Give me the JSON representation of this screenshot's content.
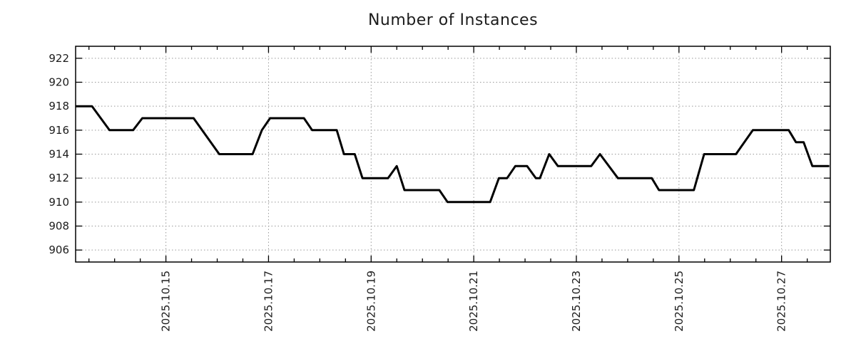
{
  "chart_data": {
    "type": "line",
    "title": "Number of Instances",
    "legend": "none",
    "grid": "dotted, at major ticks, both axes",
    "x_axis": {
      "unit": "date (fractional day of 2025.10)",
      "xlim": [
        13.24,
        27.95
      ],
      "tick_values": [
        15,
        17,
        19,
        21,
        23,
        25,
        27
      ],
      "tick_labels": [
        "2025.10.15",
        "2025.10.17",
        "2025.10.19",
        "2025.10.21",
        "2025.10.23",
        "2025.10.25",
        "2025.10.27"
      ],
      "tick_label_rotation_deg": -90,
      "minor_tick_step": 0.5
    },
    "y_axis": {
      "ylim": [
        905,
        923
      ],
      "tick_values": [
        906,
        908,
        910,
        912,
        914,
        916,
        918,
        920,
        922
      ]
    },
    "series": [
      {
        "name": "instances",
        "color": "#000000",
        "points": [
          [
            13.24,
            918
          ],
          [
            13.56,
            918
          ],
          [
            13.9,
            916
          ],
          [
            14.36,
            916
          ],
          [
            14.54,
            917
          ],
          [
            15.54,
            917
          ],
          [
            16.04,
            914
          ],
          [
            16.69,
            914
          ],
          [
            16.87,
            916
          ],
          [
            17.03,
            917
          ],
          [
            17.69,
            917
          ],
          [
            17.85,
            916
          ],
          [
            18.33,
            916
          ],
          [
            18.47,
            914
          ],
          [
            18.68,
            914
          ],
          [
            18.83,
            912
          ],
          [
            19.33,
            912
          ],
          [
            19.5,
            913
          ],
          [
            19.65,
            911
          ],
          [
            20.33,
            911
          ],
          [
            20.49,
            910
          ],
          [
            21.32,
            910
          ],
          [
            21.49,
            912
          ],
          [
            21.65,
            912
          ],
          [
            21.81,
            913
          ],
          [
            22.04,
            913
          ],
          [
            22.21,
            912
          ],
          [
            22.29,
            912
          ],
          [
            22.47,
            914
          ],
          [
            22.64,
            913
          ],
          [
            23.29,
            913
          ],
          [
            23.46,
            914
          ],
          [
            23.81,
            912
          ],
          [
            24.47,
            912
          ],
          [
            24.61,
            911
          ],
          [
            25.29,
            911
          ],
          [
            25.49,
            914
          ],
          [
            26.11,
            914
          ],
          [
            26.44,
            916
          ],
          [
            27.14,
            916
          ],
          [
            27.28,
            915
          ],
          [
            27.43,
            915
          ],
          [
            27.6,
            913
          ],
          [
            27.93,
            913
          ]
        ]
      }
    ],
    "colors": {
      "line": "#000000",
      "grid": "#999999",
      "axis": "#000000",
      "text": "#1c1c1c",
      "background": "#ffffff"
    }
  }
}
